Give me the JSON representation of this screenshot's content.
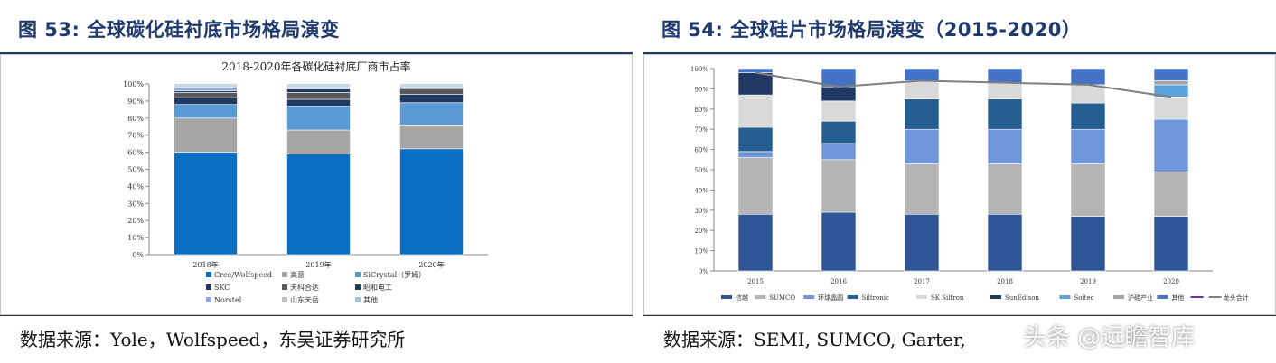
{
  "left": {
    "figure_title": "图 53:  全球碳化硅衬底市场格局演变",
    "source": "数据来源：Yole，Wolfspeed，东吴证券研究所"
  },
  "right": {
    "figure_title": "图 54:  全球硅片市场格局演变（2015-2020）",
    "source": "数据来源：SEMI, SUMCO, Garter,",
    "watermark": "头条 @远瞻智库"
  },
  "chart_data": [
    {
      "type": "bar",
      "stacked": true,
      "title": "2018-2020年各碳化硅衬底厂商市占率",
      "categories": [
        "2018年",
        "2019年",
        "2020年"
      ],
      "y_ticks": [
        "0%",
        "10%",
        "20%",
        "30%",
        "40%",
        "50%",
        "60%",
        "70%",
        "80%",
        "90%",
        "100%"
      ],
      "ylim": [
        0,
        100
      ],
      "series": [
        {
          "name": "Cree/Wolfspeed",
          "color": "#0a6fc2",
          "values": [
            60,
            59,
            62
          ]
        },
        {
          "name": "高意",
          "color": "#a6a6a6",
          "values": [
            20,
            14,
            14
          ]
        },
        {
          "name": "SiCrystal（罗姆）",
          "color": "#5b9bd5",
          "values": [
            8,
            14,
            13
          ]
        },
        {
          "name": "SKC",
          "color": "#1f3864",
          "values": [
            4,
            4,
            5
          ]
        },
        {
          "name": "天科合达",
          "color": "#595959",
          "values": [
            3,
            4,
            3
          ]
        },
        {
          "name": "昭和电工",
          "color": "#203864",
          "values": [
            1,
            2,
            1
          ]
        },
        {
          "name": "Norstel",
          "color": "#8faadc",
          "values": [
            2,
            1,
            0
          ]
        },
        {
          "name": "山东天岳",
          "color": "#bfbfbf",
          "values": [
            1,
            1,
            1
          ]
        },
        {
          "name": "其他",
          "color": "#9dc3e6",
          "values": [
            1,
            1,
            1
          ]
        }
      ]
    },
    {
      "type": "bar",
      "stacked": true,
      "title": "",
      "categories": [
        "2015",
        "2016",
        "2017",
        "2018",
        "2019",
        "2020"
      ],
      "y_ticks": [
        "0%",
        "10%",
        "20%",
        "30%",
        "40%",
        "50%",
        "60%",
        "70%",
        "80%",
        "90%",
        "100%"
      ],
      "ylim": [
        0,
        100
      ],
      "series": [
        {
          "name": "信越",
          "color": "#2f5597",
          "values": [
            28,
            29,
            28,
            28,
            27,
            27
          ]
        },
        {
          "name": "SUMCO",
          "color": "#b4b4b4",
          "values": [
            28,
            26,
            25,
            25,
            26,
            22
          ]
        },
        {
          "name": "环球晶圆",
          "color": "#6f96d8",
          "values": [
            3,
            8,
            17,
            17,
            17,
            26
          ]
        },
        {
          "name": "Siltronic",
          "color": "#255e91",
          "values": [
            12,
            11,
            15,
            15,
            13,
            0
          ]
        },
        {
          "name": "SK Siltron",
          "color": "#d9d9d9",
          "values": [
            16,
            10,
            9,
            8,
            9,
            11
          ]
        },
        {
          "name": "SunEdison",
          "color": "#203864",
          "values": [
            11,
            7,
            0,
            0,
            0,
            0
          ]
        },
        {
          "name": "Soitec",
          "color": "#5ba3dc",
          "values": [
            0,
            0,
            0,
            0,
            0,
            6
          ]
        },
        {
          "name": "沪硅产业",
          "color": "#a5a5a5",
          "values": [
            0,
            0,
            0,
            0,
            0,
            2
          ]
        },
        {
          "name": "其他",
          "color": "#4472c4",
          "values": [
            2,
            9,
            6,
            7,
            8,
            6
          ]
        }
      ],
      "line_series": {
        "name": "龙头合计",
        "color": "#7f7f7f",
        "values": [
          98,
          91,
          94,
          93,
          92,
          86
        ]
      },
      "legend_line_extra": {
        "name": "",
        "color": "#7030a0"
      }
    }
  ]
}
